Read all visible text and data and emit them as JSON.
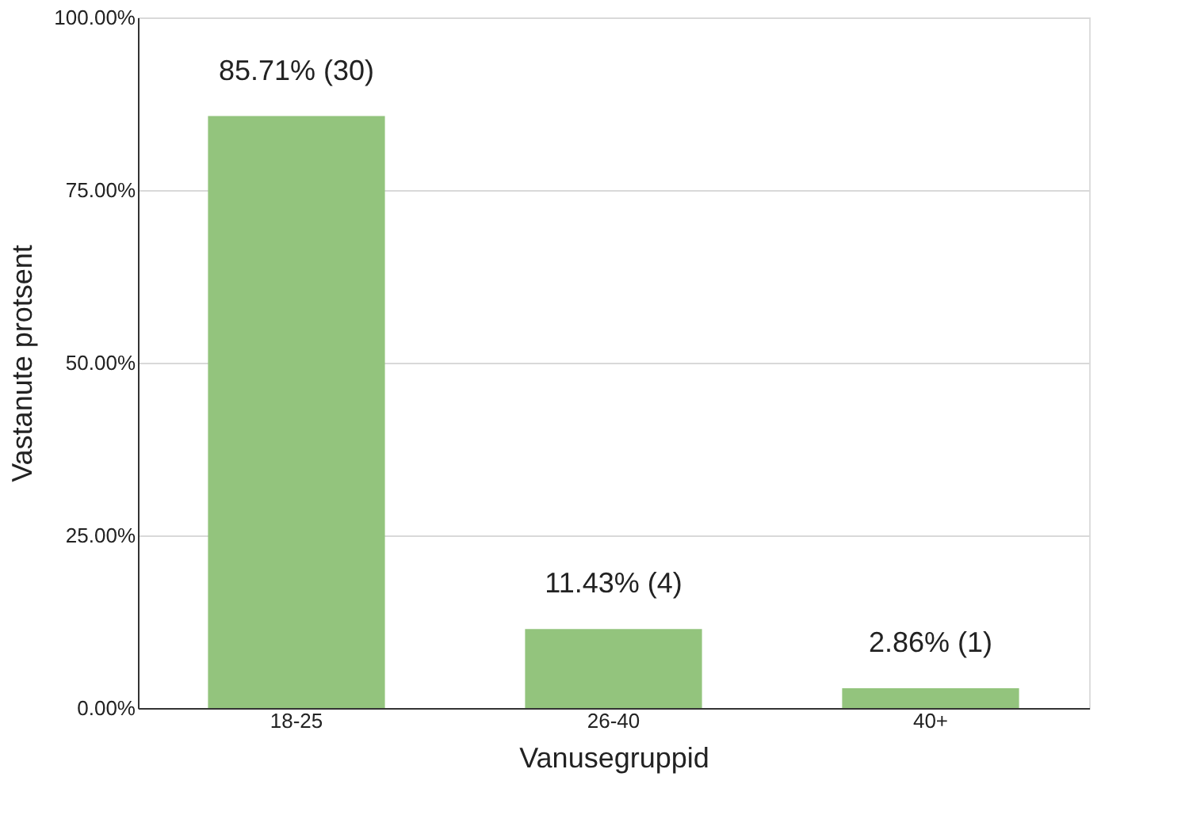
{
  "chart_data": {
    "type": "bar",
    "xlabel": "Vanusegruppid",
    "ylabel": "Vastanute protsent",
    "categories": [
      "18-25",
      "26-40",
      "40+"
    ],
    "values": [
      85.71,
      11.43,
      2.86
    ],
    "color": "#93c47d",
    "value_labels": [
      "85.71% (30)",
      "11.43% (4)",
      "2.86% (1)"
    ],
    "ylim": [
      0,
      100
    ],
    "yticks": [
      {
        "value": 0,
        "label": "0.00%"
      },
      {
        "value": 25,
        "label": "25.00%"
      },
      {
        "value": 50,
        "label": "50.00%"
      },
      {
        "value": 75,
        "label": "75.00%"
      },
      {
        "value": 100,
        "label": "100.00%"
      }
    ],
    "grid": "y"
  }
}
